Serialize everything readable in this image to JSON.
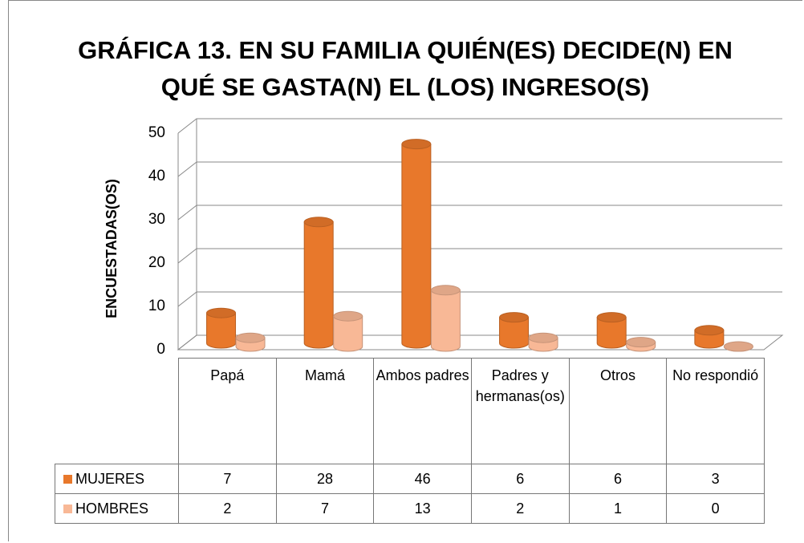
{
  "chart_data": {
    "type": "bar3d",
    "title": "GRÁFICA 13. EN SU FAMILIA QUIÉN(ES) DECIDE(N) EN QUÉ SE GASTA(N) EL (LOS) INGRESO(S)",
    "y_label": "ENCUESTADAS(OS)",
    "categories": [
      "Papá",
      "Mamá",
      "Ambos padres",
      "Padres y hermanas(os)",
      "Otros",
      "No respondió"
    ],
    "series": [
      {
        "name": "MUJERES",
        "color": "#e8782b",
        "values": [
          7,
          28,
          46,
          6,
          6,
          3
        ]
      },
      {
        "name": "HOMBRES",
        "color": "#f8b896",
        "values": [
          2,
          7,
          13,
          2,
          1,
          0
        ]
      }
    ],
    "ylim": [
      0,
      50
    ],
    "yticks": [
      0,
      10,
      20,
      30,
      40,
      50
    ],
    "grid": true
  }
}
